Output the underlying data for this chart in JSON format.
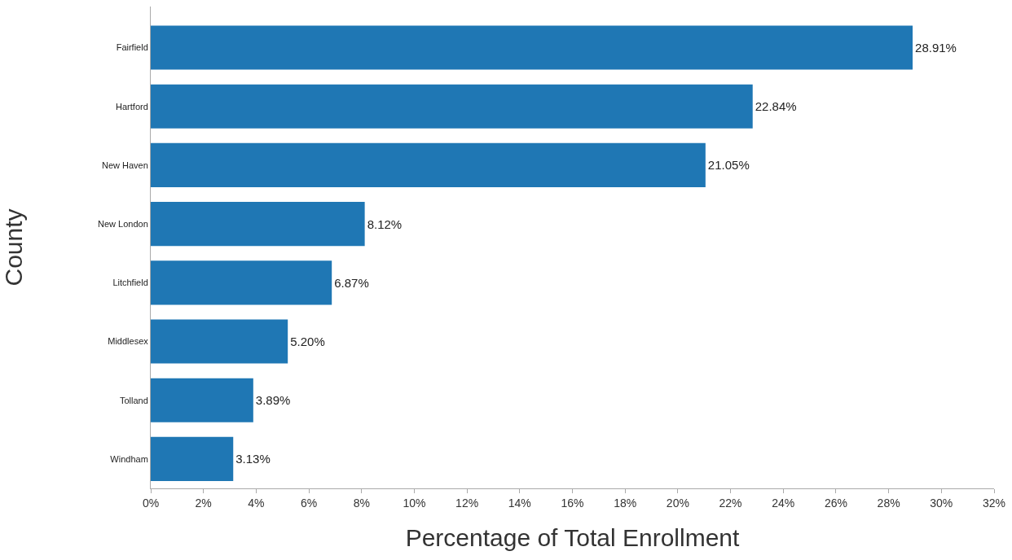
{
  "chart_data": {
    "type": "bar",
    "orientation": "horizontal",
    "xlabel": "Percentage of Total Enrollment",
    "ylabel": "County",
    "categories": [
      "Fairfield",
      "Hartford",
      "New Haven",
      "New London",
      "Litchfield",
      "Middlesex",
      "Tolland",
      "Windham"
    ],
    "values": [
      28.91,
      22.84,
      21.05,
      8.12,
      6.87,
      5.2,
      3.89,
      3.13
    ],
    "value_labels": [
      "28.91%",
      "22.84%",
      "21.05%",
      "8.12%",
      "6.87%",
      "5.20%",
      "3.89%",
      "3.13%"
    ],
    "color": "#1f77b4",
    "xlim": [
      0,
      32
    ],
    "xticks": [
      {
        "value": 0,
        "label": "0%"
      },
      {
        "value": 2,
        "label": "2%"
      },
      {
        "value": 4,
        "label": "4%"
      },
      {
        "value": 6,
        "label": "6%"
      },
      {
        "value": 8,
        "label": "8%"
      },
      {
        "value": 10,
        "label": "10%"
      },
      {
        "value": 12,
        "label": "12%"
      },
      {
        "value": 14,
        "label": "14%"
      },
      {
        "value": 16,
        "label": "16%"
      },
      {
        "value": 18,
        "label": "18%"
      },
      {
        "value": 20,
        "label": "20%"
      },
      {
        "value": 22,
        "label": "22%"
      },
      {
        "value": 24,
        "label": "24%"
      },
      {
        "value": 26,
        "label": "26%"
      },
      {
        "value": 28,
        "label": "28%"
      },
      {
        "value": 30,
        "label": "30%"
      },
      {
        "value": 32,
        "label": "32%"
      }
    ]
  }
}
